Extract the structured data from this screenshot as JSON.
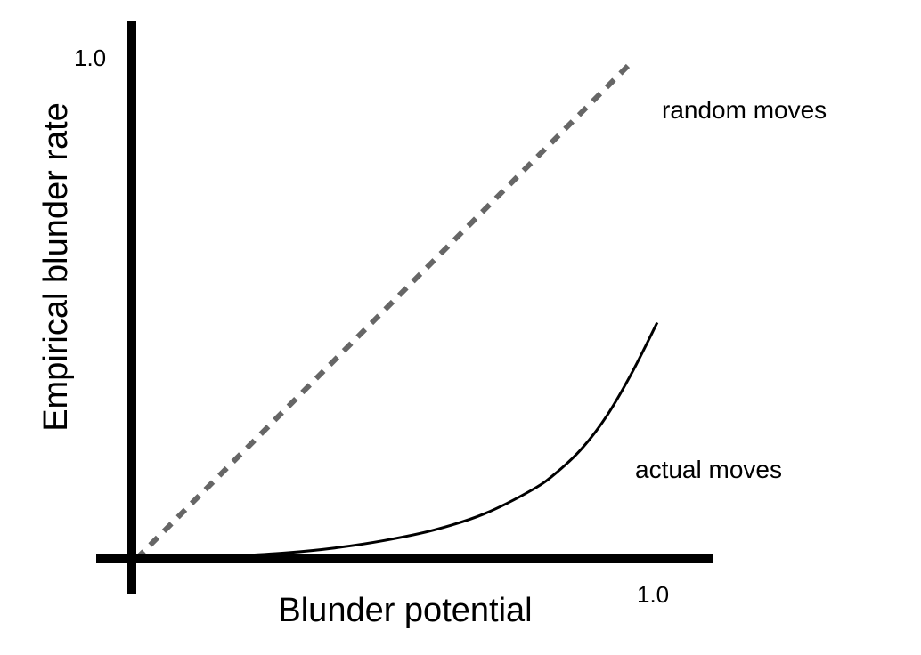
{
  "chart_data": {
    "type": "line",
    "title": "",
    "xlabel": "Blunder potential",
    "ylabel": "Empirical blunder rate",
    "xlim": [
      0,
      1.0
    ],
    "ylim": [
      0,
      1.0
    ],
    "x_tick_labels": [
      "1.0"
    ],
    "y_tick_labels": [
      "1.0"
    ],
    "grid": false,
    "legend": "none",
    "series": [
      {
        "name": "random moves",
        "style": "dashed",
        "color": "#666666",
        "x": [
          0,
          1.0
        ],
        "y": [
          0,
          1.0
        ]
      },
      {
        "name": "actual moves",
        "style": "solid",
        "color": "#000000",
        "x": [
          0,
          0.1,
          0.2,
          0.3,
          0.4,
          0.5,
          0.6,
          0.7,
          0.8,
          0.85,
          0.9,
          0.95,
          1.0,
          1.05
        ],
        "y": [
          0,
          0.002,
          0.006,
          0.012,
          0.022,
          0.037,
          0.058,
          0.09,
          0.14,
          0.176,
          0.224,
          0.29,
          0.376,
          0.475
        ]
      }
    ]
  }
}
